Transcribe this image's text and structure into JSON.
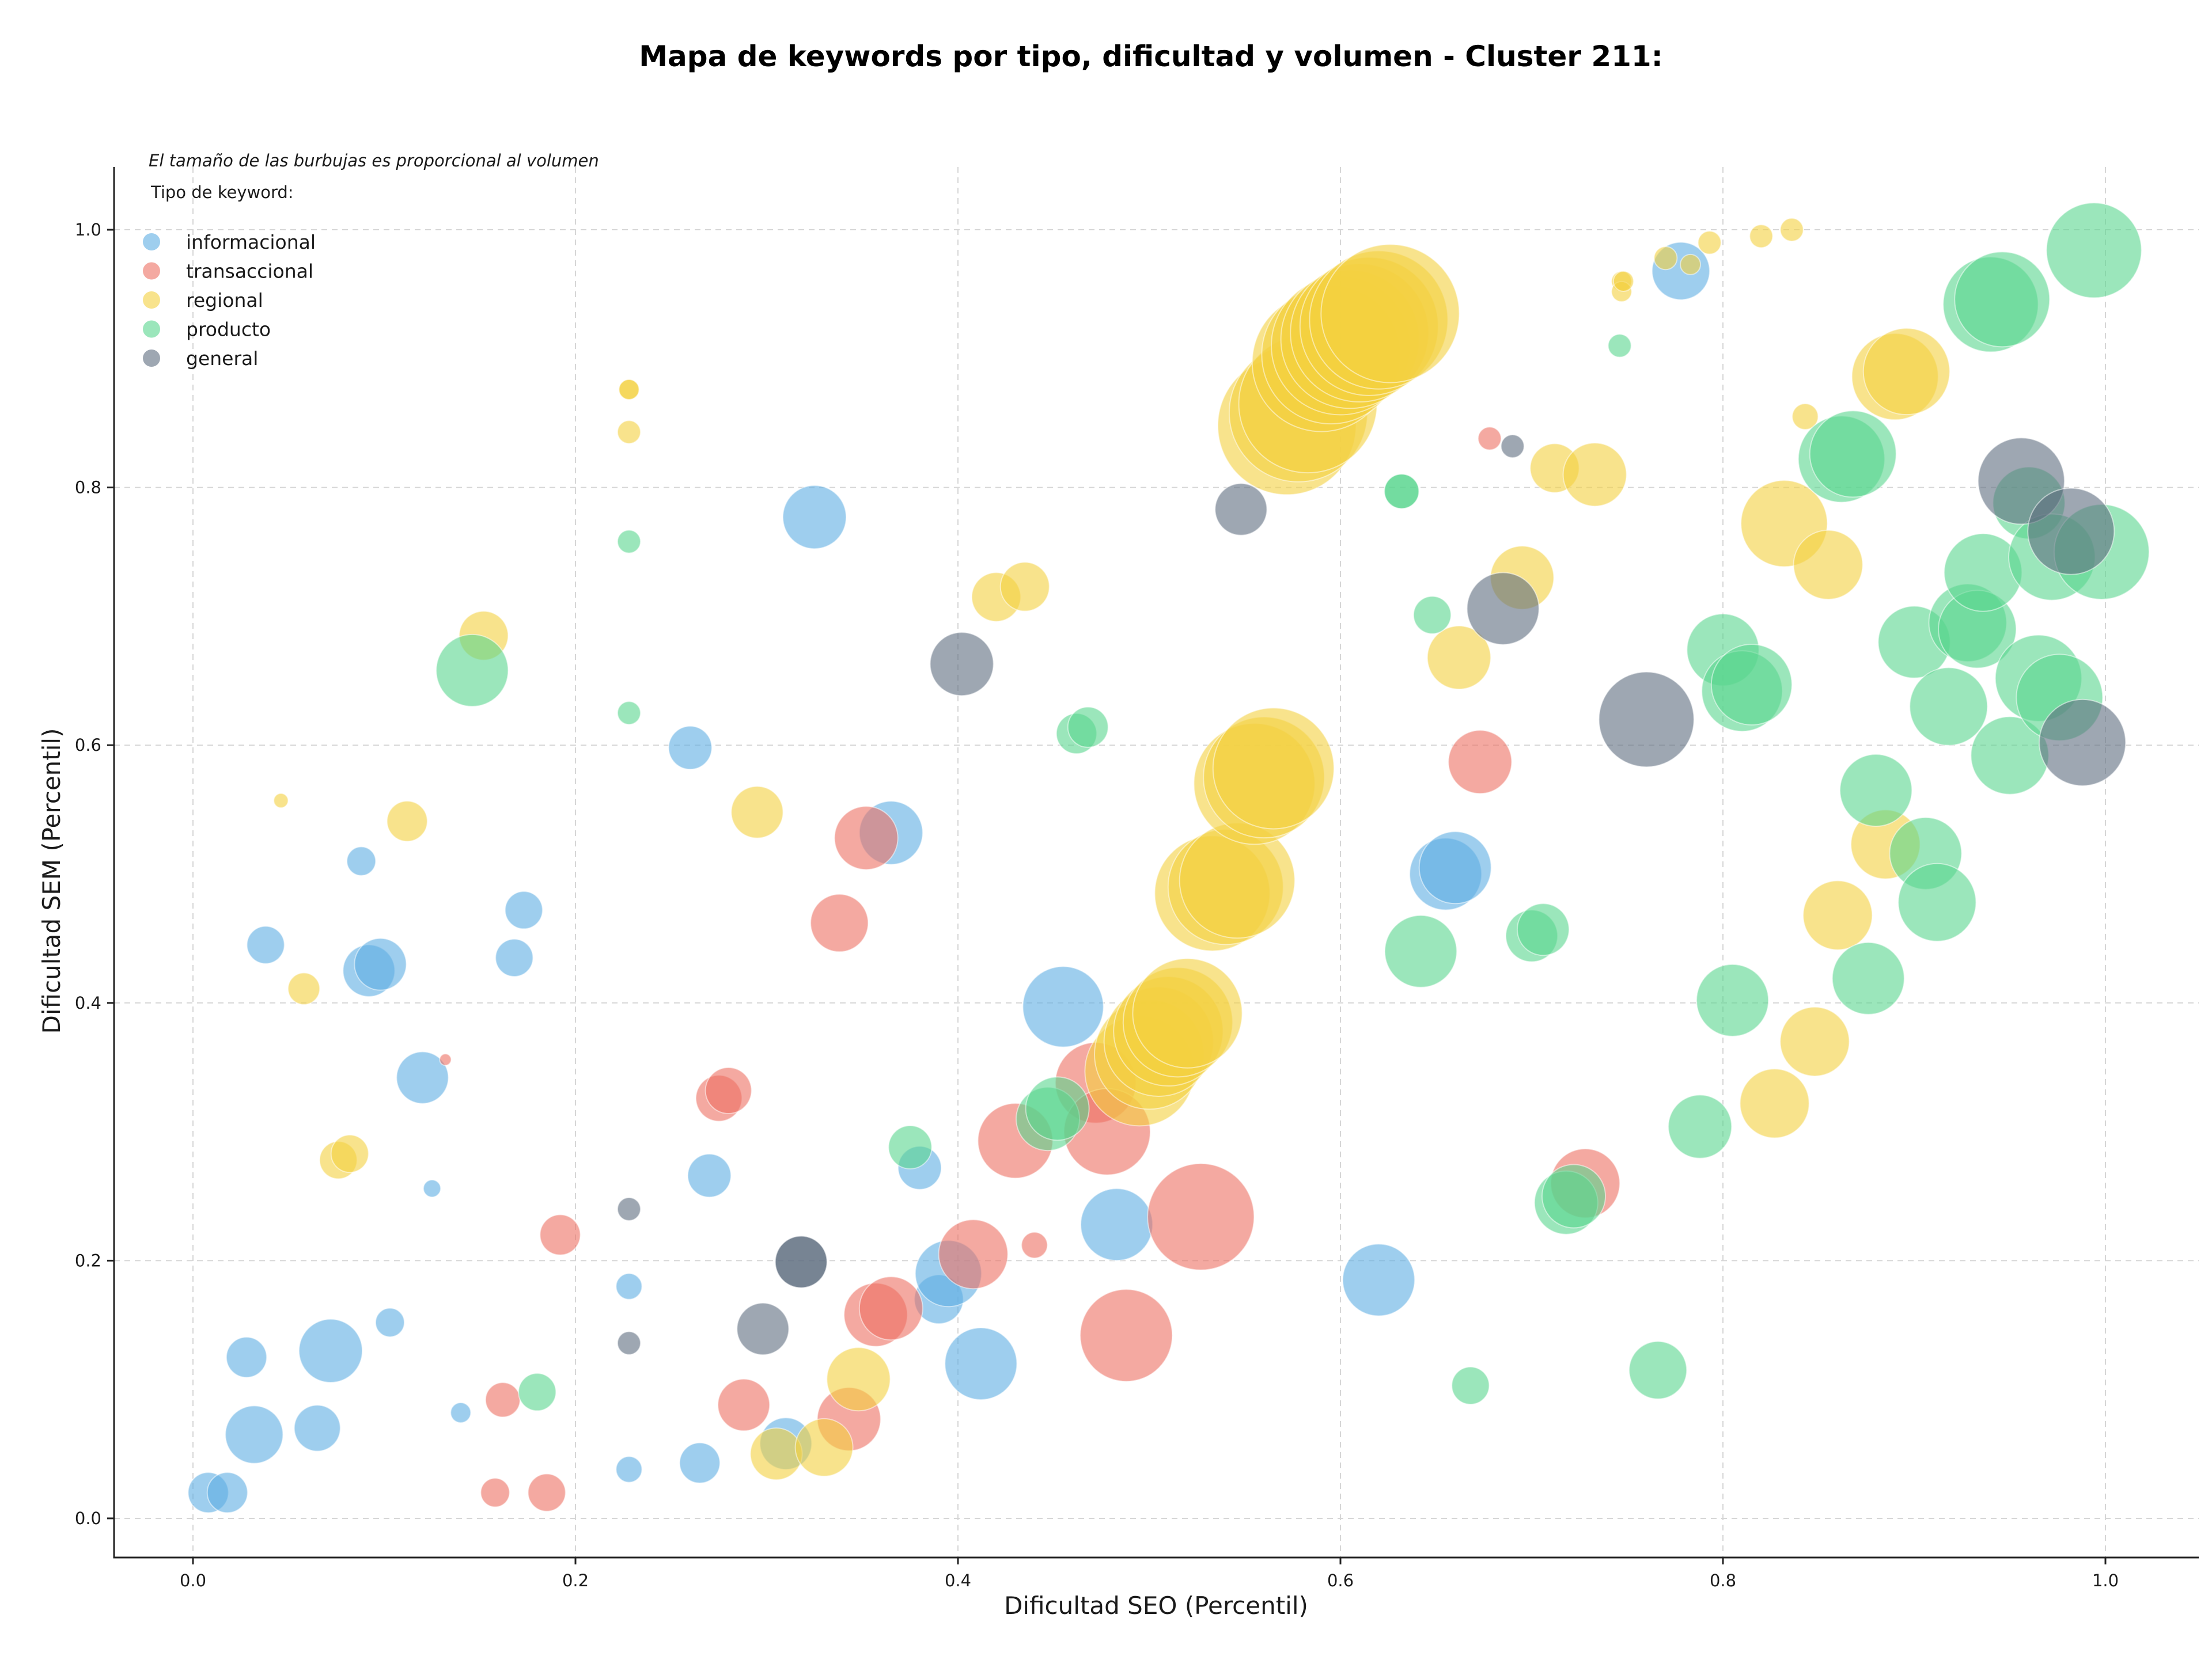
{
  "chart_data": {
    "type": "scatter",
    "title": "Mapa de keywords por tipo, dificultad y volumen - Cluster 211:",
    "note": "El tamaño de las burbujas es proporcional al volumen",
    "xlabel": "Dificultad SEO (Percentil)",
    "ylabel": "Dificultad SEM (Percentil)",
    "xlim": [
      -0.04,
      1.05
    ],
    "ylim": [
      -0.03,
      1.05
    ],
    "x_ticks": [
      0.0,
      0.2,
      0.4,
      0.6,
      0.8,
      1.0
    ],
    "y_ticks": [
      0.0,
      0.2,
      0.4,
      0.6,
      0.8,
      1.0
    ],
    "x_tick_labels": [
      "0.0",
      "0.2",
      "0.4",
      "0.6",
      "0.8",
      "1.0"
    ],
    "y_tick_labels": [
      "0.0",
      "0.2",
      "0.4",
      "0.6",
      "0.8",
      "1.0"
    ],
    "grid": true,
    "legend": {
      "title": "Tipo de keyword:",
      "position": "top-left"
    },
    "size_encoding": "volume",
    "series": [
      {
        "name": "informacional",
        "color": "#5DADE2",
        "points": [
          {
            "x": 0.008,
            "y": 0.02,
            "size": 14
          },
          {
            "x": 0.018,
            "y": 0.02,
            "size": 14
          },
          {
            "x": 0.028,
            "y": 0.125,
            "size": 14
          },
          {
            "x": 0.032,
            "y": 0.065,
            "size": 20
          },
          {
            "x": 0.038,
            "y": 0.445,
            "size": 13
          },
          {
            "x": 0.065,
            "y": 0.07,
            "size": 16
          },
          {
            "x": 0.072,
            "y": 0.13,
            "size": 22
          },
          {
            "x": 0.088,
            "y": 0.51,
            "size": 10
          },
          {
            "x": 0.092,
            "y": 0.425,
            "size": 18
          },
          {
            "x": 0.098,
            "y": 0.43,
            "size": 18
          },
          {
            "x": 0.103,
            "y": 0.152,
            "size": 10
          },
          {
            "x": 0.12,
            "y": 0.342,
            "size": 18
          },
          {
            "x": 0.125,
            "y": 0.256,
            "size": 6
          },
          {
            "x": 0.14,
            "y": 0.082,
            "size": 7
          },
          {
            "x": 0.168,
            "y": 0.435,
            "size": 13
          },
          {
            "x": 0.173,
            "y": 0.472,
            "size": 13
          },
          {
            "x": 0.228,
            "y": 0.18,
            "size": 9
          },
          {
            "x": 0.228,
            "y": 0.038,
            "size": 9
          },
          {
            "x": 0.26,
            "y": 0.598,
            "size": 15
          },
          {
            "x": 0.265,
            "y": 0.043,
            "size": 14
          },
          {
            "x": 0.27,
            "y": 0.266,
            "size": 15
          },
          {
            "x": 0.31,
            "y": 0.058,
            "size": 18
          },
          {
            "x": 0.325,
            "y": 0.777,
            "size": 22
          },
          {
            "x": 0.365,
            "y": 0.532,
            "size": 22
          },
          {
            "x": 0.38,
            "y": 0.272,
            "size": 15
          },
          {
            "x": 0.39,
            "y": 0.17,
            "size": 17
          },
          {
            "x": 0.395,
            "y": 0.19,
            "size": 23
          },
          {
            "x": 0.412,
            "y": 0.12,
            "size": 25
          },
          {
            "x": 0.455,
            "y": 0.397,
            "size": 28
          },
          {
            "x": 0.483,
            "y": 0.228,
            "size": 25
          },
          {
            "x": 0.62,
            "y": 0.185,
            "size": 25
          },
          {
            "x": 0.655,
            "y": 0.5,
            "size": 25
          },
          {
            "x": 0.66,
            "y": 0.505,
            "size": 25
          },
          {
            "x": 0.778,
            "y": 0.968,
            "size": 20
          }
        ]
      },
      {
        "name": "transaccional",
        "color": "#EC7063",
        "points": [
          {
            "x": 0.132,
            "y": 0.356,
            "size": 4
          },
          {
            "x": 0.158,
            "y": 0.02,
            "size": 10
          },
          {
            "x": 0.162,
            "y": 0.092,
            "size": 12
          },
          {
            "x": 0.185,
            "y": 0.02,
            "size": 13
          },
          {
            "x": 0.192,
            "y": 0.22,
            "size": 14
          },
          {
            "x": 0.275,
            "y": 0.326,
            "size": 16
          },
          {
            "x": 0.28,
            "y": 0.332,
            "size": 16
          },
          {
            "x": 0.288,
            "y": 0.088,
            "size": 18
          },
          {
            "x": 0.338,
            "y": 0.462,
            "size": 20
          },
          {
            "x": 0.343,
            "y": 0.077,
            "size": 22
          },
          {
            "x": 0.352,
            "y": 0.528,
            "size": 22
          },
          {
            "x": 0.357,
            "y": 0.158,
            "size": 22
          },
          {
            "x": 0.365,
            "y": 0.163,
            "size": 22
          },
          {
            "x": 0.408,
            "y": 0.205,
            "size": 24
          },
          {
            "x": 0.43,
            "y": 0.293,
            "size": 26
          },
          {
            "x": 0.44,
            "y": 0.212,
            "size": 9
          },
          {
            "x": 0.472,
            "y": 0.338,
            "size": 28
          },
          {
            "x": 0.478,
            "y": 0.3,
            "size": 30
          },
          {
            "x": 0.488,
            "y": 0.142,
            "size": 32
          },
          {
            "x": 0.527,
            "y": 0.234,
            "size": 37
          },
          {
            "x": 0.673,
            "y": 0.587,
            "size": 22
          },
          {
            "x": 0.678,
            "y": 0.838,
            "size": 8
          },
          {
            "x": 0.728,
            "y": 0.26,
            "size": 24
          }
        ]
      },
      {
        "name": "regional",
        "color": "#F4D03F",
        "points": [
          {
            "x": 0.046,
            "y": 0.557,
            "size": 5
          },
          {
            "x": 0.058,
            "y": 0.411,
            "size": 11
          },
          {
            "x": 0.076,
            "y": 0.278,
            "size": 13
          },
          {
            "x": 0.082,
            "y": 0.283,
            "size": 13
          },
          {
            "x": 0.112,
            "y": 0.541,
            "size": 14
          },
          {
            "x": 0.152,
            "y": 0.685,
            "size": 17
          },
          {
            "x": 0.228,
            "y": 0.876,
            "size": 7
          },
          {
            "x": 0.228,
            "y": 0.876,
            "size": 7
          },
          {
            "x": 0.228,
            "y": 0.843,
            "size": 8
          },
          {
            "x": 0.295,
            "y": 0.548,
            "size": 18
          },
          {
            "x": 0.305,
            "y": 0.05,
            "size": 18
          },
          {
            "x": 0.33,
            "y": 0.055,
            "size": 20
          },
          {
            "x": 0.348,
            "y": 0.108,
            "size": 22
          },
          {
            "x": 0.42,
            "y": 0.715,
            "size": 17
          },
          {
            "x": 0.435,
            "y": 0.723,
            "size": 17
          },
          {
            "x": 0.495,
            "y": 0.347,
            "size": 38
          },
          {
            "x": 0.5,
            "y": 0.36,
            "size": 38
          },
          {
            "x": 0.505,
            "y": 0.37,
            "size": 38
          },
          {
            "x": 0.51,
            "y": 0.378,
            "size": 38
          },
          {
            "x": 0.515,
            "y": 0.385,
            "size": 38
          },
          {
            "x": 0.52,
            "y": 0.392,
            "size": 38
          },
          {
            "x": 0.533,
            "y": 0.485,
            "size": 40
          },
          {
            "x": 0.54,
            "y": 0.49,
            "size": 40
          },
          {
            "x": 0.546,
            "y": 0.495,
            "size": 40
          },
          {
            "x": 0.555,
            "y": 0.57,
            "size": 42
          },
          {
            "x": 0.56,
            "y": 0.575,
            "size": 42
          },
          {
            "x": 0.565,
            "y": 0.582,
            "size": 42
          },
          {
            "x": 0.572,
            "y": 0.848,
            "size": 48
          },
          {
            "x": 0.578,
            "y": 0.858,
            "size": 48
          },
          {
            "x": 0.583,
            "y": 0.865,
            "size": 48
          },
          {
            "x": 0.59,
            "y": 0.897,
            "size": 48
          },
          {
            "x": 0.595,
            "y": 0.903,
            "size": 48
          },
          {
            "x": 0.6,
            "y": 0.91,
            "size": 48
          },
          {
            "x": 0.605,
            "y": 0.915,
            "size": 48
          },
          {
            "x": 0.61,
            "y": 0.92,
            "size": 48
          },
          {
            "x": 0.615,
            "y": 0.925,
            "size": 48
          },
          {
            "x": 0.62,
            "y": 0.93,
            "size": 48
          },
          {
            "x": 0.626,
            "y": 0.935,
            "size": 48
          },
          {
            "x": 0.662,
            "y": 0.668,
            "size": 22
          },
          {
            "x": 0.695,
            "y": 0.73,
            "size": 22
          },
          {
            "x": 0.712,
            "y": 0.815,
            "size": 17
          },
          {
            "x": 0.733,
            "y": 0.81,
            "size": 22
          },
          {
            "x": 0.747,
            "y": 0.96,
            "size": 7
          },
          {
            "x": 0.747,
            "y": 0.952,
            "size": 7
          },
          {
            "x": 0.748,
            "y": 0.96,
            "size": 7
          },
          {
            "x": 0.77,
            "y": 0.978,
            "size": 8
          },
          {
            "x": 0.783,
            "y": 0.973,
            "size": 7
          },
          {
            "x": 0.793,
            "y": 0.99,
            "size": 8
          },
          {
            "x": 0.82,
            "y": 0.995,
            "size": 8
          },
          {
            "x": 0.836,
            "y": 1.0,
            "size": 8
          },
          {
            "x": 0.827,
            "y": 0.322,
            "size": 24
          },
          {
            "x": 0.832,
            "y": 0.772,
            "size": 30
          },
          {
            "x": 0.843,
            "y": 0.855,
            "size": 9
          },
          {
            "x": 0.848,
            "y": 0.37,
            "size": 24
          },
          {
            "x": 0.855,
            "y": 0.74,
            "size": 24
          },
          {
            "x": 0.86,
            "y": 0.468,
            "size": 24
          },
          {
            "x": 0.885,
            "y": 0.523,
            "size": 24
          },
          {
            "x": 0.89,
            "y": 0.886,
            "size": 30
          },
          {
            "x": 0.896,
            "y": 0.89,
            "size": 30
          }
        ]
      },
      {
        "name": "producto",
        "color": "#58D68D",
        "points": [
          {
            "x": 0.146,
            "y": 0.658,
            "size": 25
          },
          {
            "x": 0.18,
            "y": 0.098,
            "size": 13
          },
          {
            "x": 0.228,
            "y": 0.758,
            "size": 8
          },
          {
            "x": 0.228,
            "y": 0.625,
            "size": 8
          },
          {
            "x": 0.375,
            "y": 0.288,
            "size": 15
          },
          {
            "x": 0.447,
            "y": 0.31,
            "size": 22
          },
          {
            "x": 0.452,
            "y": 0.318,
            "size": 22
          },
          {
            "x": 0.462,
            "y": 0.609,
            "size": 14
          },
          {
            "x": 0.468,
            "y": 0.614,
            "size": 14
          },
          {
            "x": 0.632,
            "y": 0.797,
            "size": 12
          },
          {
            "x": 0.632,
            "y": 0.797,
            "size": 12
          },
          {
            "x": 0.642,
            "y": 0.44,
            "size": 25
          },
          {
            "x": 0.648,
            "y": 0.701,
            "size": 13
          },
          {
            "x": 0.668,
            "y": 0.103,
            "size": 13
          },
          {
            "x": 0.7,
            "y": 0.452,
            "size": 18
          },
          {
            "x": 0.706,
            "y": 0.457,
            "size": 18
          },
          {
            "x": 0.718,
            "y": 0.245,
            "size": 22
          },
          {
            "x": 0.722,
            "y": 0.25,
            "size": 22
          },
          {
            "x": 0.746,
            "y": 0.91,
            "size": 8
          },
          {
            "x": 0.766,
            "y": 0.115,
            "size": 20
          },
          {
            "x": 0.788,
            "y": 0.304,
            "size": 22
          },
          {
            "x": 0.8,
            "y": 0.674,
            "size": 25
          },
          {
            "x": 0.805,
            "y": 0.402,
            "size": 25
          },
          {
            "x": 0.81,
            "y": 0.642,
            "size": 28
          },
          {
            "x": 0.815,
            "y": 0.647,
            "size": 28
          },
          {
            "x": 0.862,
            "y": 0.822,
            "size": 30
          },
          {
            "x": 0.868,
            "y": 0.826,
            "size": 30
          },
          {
            "x": 0.876,
            "y": 0.419,
            "size": 25
          },
          {
            "x": 0.88,
            "y": 0.565,
            "size": 25
          },
          {
            "x": 0.9,
            "y": 0.68,
            "size": 25
          },
          {
            "x": 0.906,
            "y": 0.516,
            "size": 25
          },
          {
            "x": 0.912,
            "y": 0.478,
            "size": 27
          },
          {
            "x": 0.918,
            "y": 0.63,
            "size": 27
          },
          {
            "x": 0.928,
            "y": 0.695,
            "size": 27
          },
          {
            "x": 0.933,
            "y": 0.69,
            "size": 27
          },
          {
            "x": 0.936,
            "y": 0.734,
            "size": 27
          },
          {
            "x": 0.94,
            "y": 0.942,
            "size": 33
          },
          {
            "x": 0.946,
            "y": 0.946,
            "size": 33
          },
          {
            "x": 0.95,
            "y": 0.592,
            "size": 27
          },
          {
            "x": 0.96,
            "y": 0.788,
            "size": 25
          },
          {
            "x": 0.965,
            "y": 0.652,
            "size": 30
          },
          {
            "x": 0.972,
            "y": 0.746,
            "size": 30
          },
          {
            "x": 0.976,
            "y": 0.637,
            "size": 30
          },
          {
            "x": 0.994,
            "y": 0.984,
            "size": 33
          },
          {
            "x": 0.998,
            "y": 0.75,
            "size": 33
          }
        ]
      },
      {
        "name": "general",
        "color": "#5D6D7E",
        "points": [
          {
            "x": 0.228,
            "y": 0.136,
            "size": 8
          },
          {
            "x": 0.228,
            "y": 0.24,
            "size": 8
          },
          {
            "x": 0.298,
            "y": 0.147,
            "size": 18
          },
          {
            "x": 0.318,
            "y": 0.199,
            "size": 18
          },
          {
            "x": 0.318,
            "y": 0.199,
            "size": 18
          },
          {
            "x": 0.402,
            "y": 0.663,
            "size": 22
          },
          {
            "x": 0.548,
            "y": 0.783,
            "size": 18
          },
          {
            "x": 0.685,
            "y": 0.706,
            "size": 25
          },
          {
            "x": 0.69,
            "y": 0.832,
            "size": 8
          },
          {
            "x": 0.76,
            "y": 0.62,
            "size": 33
          },
          {
            "x": 0.956,
            "y": 0.805,
            "size": 30
          },
          {
            "x": 0.982,
            "y": 0.766,
            "size": 30
          },
          {
            "x": 0.988,
            "y": 0.602,
            "size": 30
          }
        ]
      }
    ]
  }
}
